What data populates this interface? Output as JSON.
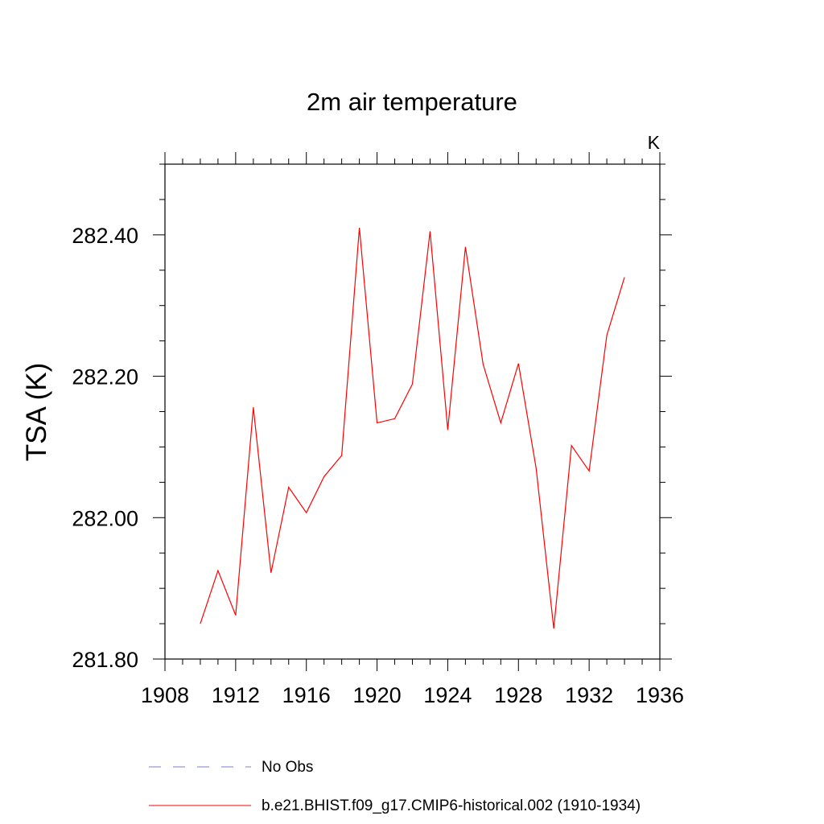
{
  "chart_data": {
    "type": "line",
    "title": "2m air temperature",
    "units_label": "K",
    "ylabel": "TSA  (K)",
    "xlabel": "",
    "xlim": [
      1908,
      1936
    ],
    "ylim": [
      281.8,
      282.5
    ],
    "x_ticks": [
      "1908",
      "1912",
      "1916",
      "1920",
      "1924",
      "1928",
      "1932",
      "1936"
    ],
    "y_ticks": [
      "281.80",
      "282.00",
      "282.20",
      "282.40"
    ],
    "grid": false,
    "legend_position": "bottom",
    "series": [
      {
        "name": "No Obs",
        "color": "#7b7bd9",
        "style": "dashed",
        "x": [],
        "values": []
      },
      {
        "name": "b.e21.BHIST.f09_g17.CMIP6-historical.002 (1910-1934)",
        "color": "#ff0000",
        "style": "solid",
        "x": [
          1910,
          1911,
          1912,
          1913,
          1914,
          1915,
          1916,
          1917,
          1918,
          1919,
          1920,
          1921,
          1922,
          1923,
          1924,
          1925,
          1926,
          1927,
          1928,
          1929,
          1930,
          1931,
          1932,
          1933,
          1934
        ],
        "values": [
          281.85,
          281.925,
          281.862,
          282.156,
          281.922,
          282.043,
          282.007,
          282.058,
          282.088,
          282.41,
          282.134,
          282.14,
          282.189,
          282.405,
          282.124,
          282.383,
          282.217,
          282.134,
          282.218,
          282.07,
          281.843,
          282.102,
          282.066,
          282.258,
          282.34
        ]
      }
    ]
  }
}
